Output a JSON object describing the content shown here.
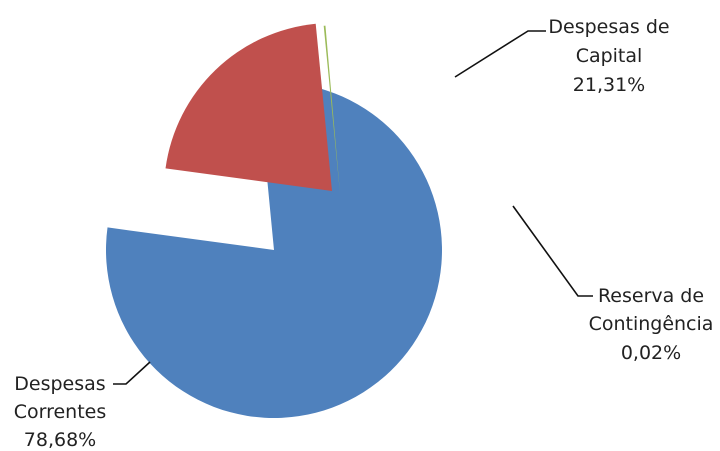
{
  "chart_data": {
    "type": "pie",
    "title": "",
    "exploded": true,
    "slices": [
      {
        "label_lines": [
          "Despesas",
          "Correntes"
        ],
        "value_label": "78,68%",
        "value": 78.68,
        "color": "#4F81BD"
      },
      {
        "label_lines": [
          "Despesas de",
          "Capital"
        ],
        "value_label": "21,31%",
        "value": 21.31,
        "color": "#C0504D"
      },
      {
        "label_lines": [
          "Reserva de",
          "Contingência"
        ],
        "value_label": "0,02%",
        "value": 0.02,
        "color": "#9BBB59"
      }
    ]
  }
}
